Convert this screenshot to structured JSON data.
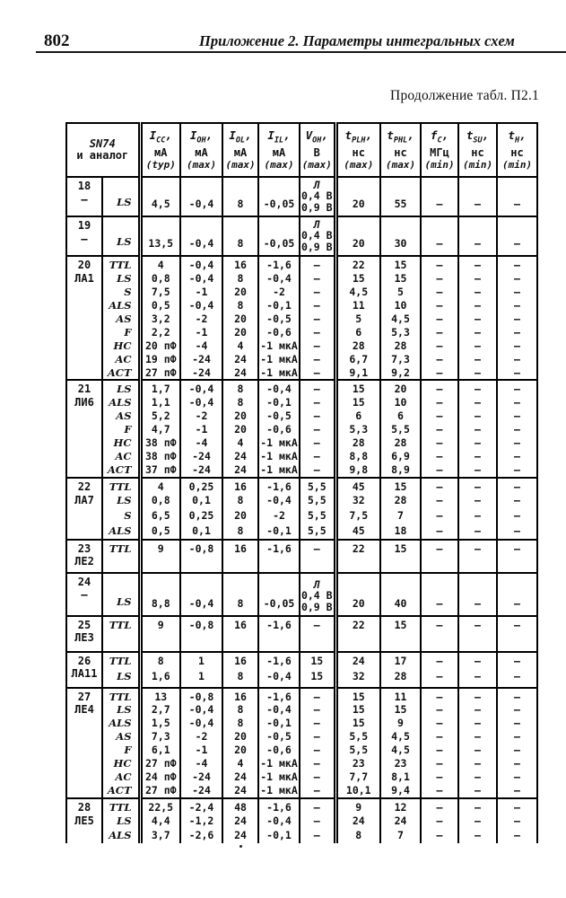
{
  "page": {
    "number": "802",
    "running_header": "Приложение 2.  Параметры интегральных схем",
    "table_caption": "Продолжение табл. П2.1"
  },
  "table": {
    "header": {
      "col1_line1": "SN74",
      "col1_line2": "и аналог",
      "cols": [
        {
          "sym": "I",
          "sub": "CC",
          "unit": "мА",
          "qual": "(typ)"
        },
        {
          "sym": "I",
          "sub": "OH",
          "unit": "мА",
          "qual": "(max)"
        },
        {
          "sym": "I",
          "sub": "OL",
          "unit": "мА",
          "qual": "(max)"
        },
        {
          "sym": "I",
          "sub": "IL",
          "unit": "мА",
          "qual": "(max)"
        },
        {
          "sym": "V",
          "sub": "OH",
          "unit": "В",
          "qual": "(max)"
        },
        {
          "sym": "t",
          "sub": "PLH",
          "unit": "нс",
          "qual": "(max)"
        },
        {
          "sym": "t",
          "sub": "PHL",
          "unit": "нс",
          "qual": "(max)"
        },
        {
          "sym": "f",
          "sub": "C",
          "unit": "МГц",
          "qual": "(min)"
        },
        {
          "sym": "t",
          "sub": "SU",
          "unit": "нс",
          "qual": "(min)"
        },
        {
          "sym": "t",
          "sub": "H",
          "unit": "нс",
          "qual": "(min)"
        }
      ]
    },
    "groups": [
      {
        "num": "18",
        "name": "–",
        "rows": [
          {
            "type": "LS",
            "cells": [
              "4,5",
              "-0,4",
              "8",
              "-0,05",
              [
                "Л",
                "0,4 В",
                "0,9 В"
              ],
              "20",
              "55",
              "–",
              "–",
              "–"
            ]
          }
        ]
      },
      {
        "num": "19",
        "name": "–",
        "rows": [
          {
            "type": "LS",
            "cells": [
              "13,5",
              "-0,4",
              "8",
              "-0,05",
              [
                "Л",
                "0,4 В",
                "0,9 В"
              ],
              "20",
              "30",
              "–",
              "–",
              "–"
            ]
          }
        ]
      },
      {
        "num": "20",
        "name": "ЛА1",
        "rows": [
          {
            "type": "TTL",
            "cells": [
              "4",
              "-0,4",
              "16",
              "-1,6",
              "–",
              "22",
              "15",
              "–",
              "–",
              "–"
            ]
          },
          {
            "type": "LS",
            "cells": [
              "0,8",
              "-0,4",
              "8",
              "-0,4",
              "–",
              "15",
              "15",
              "–",
              "–",
              "–"
            ]
          },
          {
            "type": "S",
            "cells": [
              "7,5",
              "-1",
              "20",
              "-2",
              "–",
              "4,5",
              "5",
              "–",
              "–",
              "–"
            ]
          },
          {
            "type": "ALS",
            "cells": [
              "0,5",
              "-0,4",
              "8",
              "-0,1",
              "–",
              "11",
              "10",
              "–",
              "–",
              "–"
            ]
          },
          {
            "type": "AS",
            "cells": [
              "3,2",
              "-2",
              "20",
              "-0,5",
              "–",
              "5",
              "4,5",
              "–",
              "–",
              "–"
            ]
          },
          {
            "type": "F",
            "cells": [
              "2,2",
              "-1",
              "20",
              "-0,6",
              "–",
              "6",
              "5,3",
              "–",
              "–",
              "–"
            ]
          },
          {
            "type": "HC",
            "cells": [
              "20 пФ",
              "-4",
              "4",
              "-1 мкА",
              "–",
              "28",
              "28",
              "–",
              "–",
              "–"
            ]
          },
          {
            "type": "AC",
            "cells": [
              "19 пФ",
              "-24",
              "24",
              "-1 мкА",
              "–",
              "6,7",
              "7,3",
              "–",
              "–",
              "–"
            ]
          },
          {
            "type": "ACT",
            "cells": [
              "27 пФ",
              "-24",
              "24",
              "-1 мкА",
              "–",
              "9,1",
              "9,2",
              "–",
              "–",
              "–"
            ]
          }
        ]
      },
      {
        "num": "21",
        "name": "ЛИ6",
        "rows": [
          {
            "type": "LS",
            "cells": [
              "1,7",
              "-0,4",
              "8",
              "-0,4",
              "–",
              "15",
              "20",
              "–",
              "–",
              "–"
            ]
          },
          {
            "type": "ALS",
            "cells": [
              "1,1",
              "-0,4",
              "8",
              "-0,1",
              "–",
              "15",
              "10",
              "–",
              "–",
              "–"
            ]
          },
          {
            "type": "AS",
            "cells": [
              "5,2",
              "-2",
              "20",
              "-0,5",
              "–",
              "6",
              "6",
              "–",
              "–",
              "–"
            ]
          },
          {
            "type": "F",
            "cells": [
              "4,7",
              "-1",
              "20",
              "-0,6",
              "–",
              "5,3",
              "5,5",
              "–",
              "–",
              "–"
            ]
          },
          {
            "type": "HC",
            "cells": [
              "38 пФ",
              "-4",
              "4",
              "-1 мкА",
              "–",
              "28",
              "28",
              "–",
              "–",
              "–"
            ]
          },
          {
            "type": "AC",
            "cells": [
              "38 пФ",
              "-24",
              "24",
              "-1 мкА",
              "–",
              "8,8",
              "6,9",
              "–",
              "–",
              "–"
            ]
          },
          {
            "type": "ACT",
            "cells": [
              "37 пФ",
              "-24",
              "24",
              "-1 мкА",
              "–",
              "9,8",
              "8,9",
              "–",
              "–",
              "–"
            ]
          }
        ]
      },
      {
        "num": "22",
        "name": "ЛА7",
        "rows": [
          {
            "type": "TTL",
            "cells": [
              "4",
              "0,25",
              "16",
              "-1,6",
              "5,5",
              "45",
              "15",
              "–",
              "–",
              "–"
            ]
          },
          {
            "type": "LS",
            "cells": [
              "0,8",
              "0,1",
              "8",
              "-0,4",
              "5,5",
              "32",
              "28",
              "–",
              "–",
              "–"
            ]
          },
          {
            "type": "S",
            "cells": [
              "6,5",
              "0,25",
              "20",
              "-2",
              "5,5",
              "7,5",
              "7",
              "–",
              "–",
              "–"
            ]
          },
          {
            "type": "ALS",
            "cells": [
              "0,5",
              "0,1",
              "8",
              "-0,1",
              "5,5",
              "45",
              "18",
              "–",
              "–",
              "–"
            ]
          }
        ]
      },
      {
        "num": "23",
        "name": "ЛЕ2",
        "rows": [
          {
            "type": "TTL",
            "cells": [
              "9",
              "-0,8",
              "16",
              "-1,6",
              "–",
              "22",
              "15",
              "–",
              "–",
              "–"
            ]
          }
        ]
      },
      {
        "num": "24",
        "name": "–",
        "rows": [
          {
            "type": "LS",
            "cells": [
              "8,8",
              "-0,4",
              "8",
              "-0,05",
              [
                "Л",
                "0,4 В",
                "0,9 В"
              ],
              "20",
              "40",
              "–",
              "–",
              "–"
            ]
          }
        ]
      },
      {
        "num": "25",
        "name": "ЛЕ3",
        "rows": [
          {
            "type": "TTL",
            "cells": [
              "9",
              "-0,8",
              "16",
              "-1,6",
              "–",
              "22",
              "15",
              "–",
              "–",
              "–"
            ]
          }
        ]
      },
      {
        "num": "26",
        "name": "ЛА11",
        "rows": [
          {
            "type": "TTL",
            "cells": [
              "8",
              "1",
              "16",
              "-1,6",
              "15",
              "24",
              "17",
              "–",
              "–",
              "–"
            ]
          },
          {
            "type": "LS",
            "cells": [
              "1,6",
              "1",
              "8",
              "-0,4",
              "15",
              "32",
              "28",
              "–",
              "–",
              "–"
            ]
          }
        ]
      },
      {
        "num": "27",
        "name": "ЛЕ4",
        "rows": [
          {
            "type": "TTL",
            "cells": [
              "13",
              "-0,8",
              "16",
              "-1,6",
              "–",
              "15",
              "11",
              "–",
              "–",
              "–"
            ]
          },
          {
            "type": "LS",
            "cells": [
              "2,7",
              "-0,4",
              "8",
              "-0,4",
              "–",
              "15",
              "15",
              "–",
              "–",
              "–"
            ]
          },
          {
            "type": "ALS",
            "cells": [
              "1,5",
              "-0,4",
              "8",
              "-0,1",
              "–",
              "15",
              "9",
              "–",
              "–",
              "–"
            ]
          },
          {
            "type": "AS",
            "cells": [
              "7,3",
              "-2",
              "20",
              "-0,5",
              "–",
              "5,5",
              "4,5",
              "–",
              "–",
              "–"
            ]
          },
          {
            "type": "F",
            "cells": [
              "6,1",
              "-1",
              "20",
              "-0,6",
              "–",
              "5,5",
              "4,5",
              "–",
              "–",
              "–"
            ]
          },
          {
            "type": "HC",
            "cells": [
              "27 пФ",
              "-4",
              "4",
              "-1 мкА",
              "–",
              "23",
              "23",
              "–",
              "–",
              "–"
            ]
          },
          {
            "type": "AC",
            "cells": [
              "24 пФ",
              "-24",
              "24",
              "-1 мкА",
              "–",
              "7,7",
              "8,1",
              "–",
              "–",
              "–"
            ]
          },
          {
            "type": "ACT",
            "cells": [
              "27 пФ",
              "-24",
              "24",
              "-1 мкА",
              "–",
              "10,1",
              "9,4",
              "–",
              "–",
              "–"
            ]
          }
        ]
      },
      {
        "num": "28",
        "name": "ЛЕ5",
        "rows": [
          {
            "type": "TTL",
            "cells": [
              "22,5",
              "-2,4",
              "48",
              "-1,6",
              "–",
              "9",
              "12",
              "–",
              "–",
              "–"
            ]
          },
          {
            "type": "LS",
            "cells": [
              "4,4",
              "-1,2",
              "24",
              "-0,4",
              "–",
              "24",
              "24",
              "–",
              "–",
              "–"
            ]
          },
          {
            "type": "ALS",
            "cells": [
              "3,7",
              "-2,6",
              "24",
              "-0,1",
              "–",
              "8",
              "7",
              "–",
              "–",
              "–"
            ]
          }
        ]
      }
    ]
  }
}
